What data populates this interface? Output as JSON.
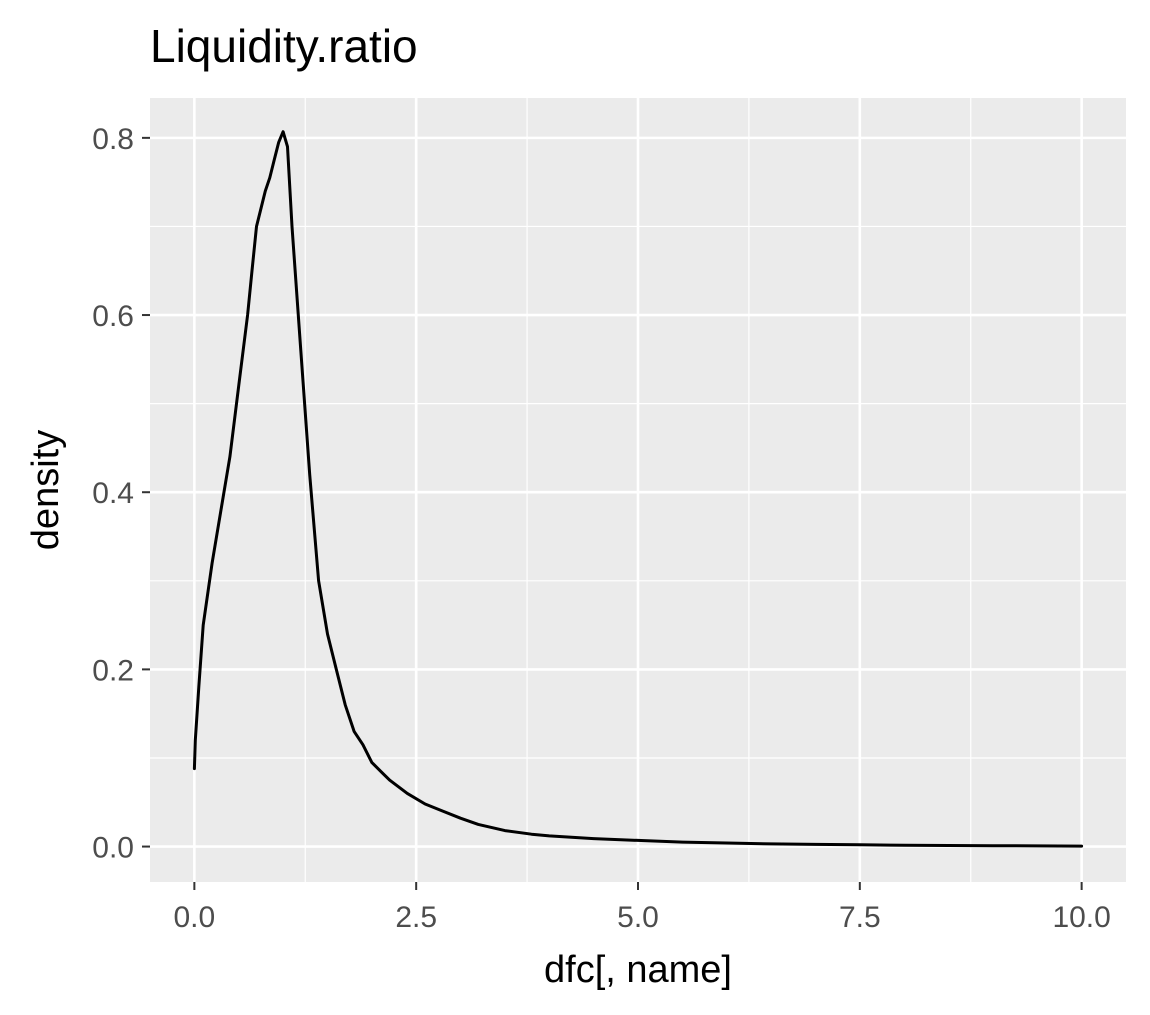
{
  "chart_data": {
    "type": "line",
    "title": "Liquidity.ratio",
    "xlabel": "dfc[, name]",
    "ylabel": "density",
    "xlim": [
      -0.5,
      10.5
    ],
    "ylim": [
      -0.04,
      0.845
    ],
    "x_ticks": [
      0.0,
      2.5,
      5.0,
      7.5,
      10.0
    ],
    "x_tick_labels": [
      "0.0",
      "2.5",
      "5.0",
      "7.5",
      "10.0"
    ],
    "y_ticks": [
      0.0,
      0.2,
      0.4,
      0.6,
      0.8
    ],
    "y_tick_labels": [
      "0.0",
      "0.2",
      "0.4",
      "0.6",
      "0.8"
    ],
    "grid": true,
    "colors": {
      "panel_background": "#ebebeb",
      "grid": "#ffffff",
      "line": "#000000"
    },
    "series": [
      {
        "x": [
          0.0,
          0.01,
          0.05,
          0.1,
          0.2,
          0.3,
          0.4,
          0.5,
          0.6,
          0.65,
          0.7,
          0.8,
          0.85,
          0.9,
          0.95,
          1.0,
          1.05,
          1.1,
          1.2,
          1.3,
          1.4,
          1.5,
          1.6,
          1.7,
          1.8,
          1.9,
          2.0,
          2.1,
          2.2,
          2.4,
          2.6,
          2.8,
          3.0,
          3.2,
          3.5,
          3.8,
          4.0,
          4.5,
          5.0,
          5.5,
          6.0,
          6.5,
          7.0,
          7.5,
          8.0,
          8.5,
          9.0,
          9.5,
          10.0
        ],
        "y": [
          0.088,
          0.12,
          0.18,
          0.25,
          0.32,
          0.38,
          0.44,
          0.52,
          0.6,
          0.65,
          0.7,
          0.74,
          0.755,
          0.775,
          0.795,
          0.807,
          0.79,
          0.7,
          0.56,
          0.42,
          0.3,
          0.24,
          0.2,
          0.16,
          0.13,
          0.115,
          0.095,
          0.085,
          0.075,
          0.06,
          0.048,
          0.04,
          0.032,
          0.025,
          0.018,
          0.014,
          0.012,
          0.009,
          0.007,
          0.005,
          0.004,
          0.003,
          0.0025,
          0.002,
          0.0015,
          0.0012,
          0.001,
          0.0008,
          0.0005
        ]
      }
    ]
  }
}
